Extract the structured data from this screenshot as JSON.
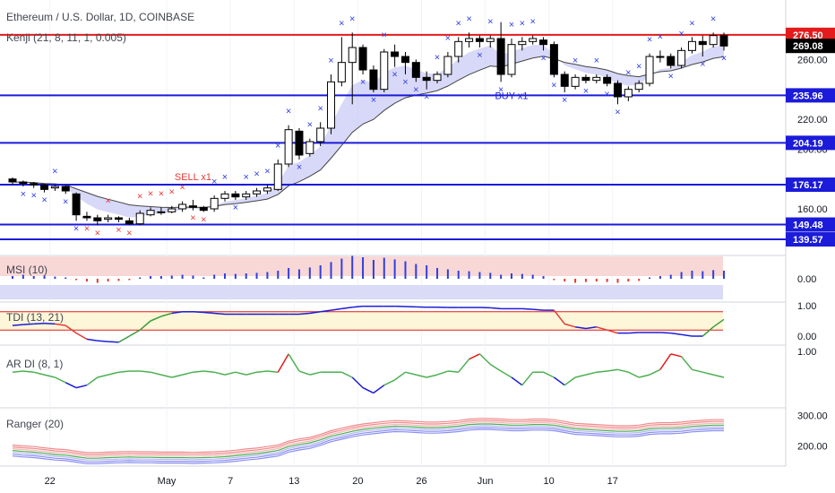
{
  "header": {
    "title": "Ethereum / U.S. Dollar, 1D, COINBASE",
    "indicator": "Kenji (21, 8, 11, 1, 0.005)"
  },
  "colors": {
    "bg": "#ffffff",
    "grid": "#f0f3fa",
    "axis": "#d1d4dc",
    "text": "#131722",
    "level": "#1b1bd9",
    "resistance": "#e31b1b",
    "cloud": "#c7c8f5",
    "cloud_green": "#c9e8c6",
    "marker": "#2f3fe0",
    "marker_sell": "#e53935",
    "up": "#ffffff",
    "down": "#000000",
    "ranger_red": "#f08a8a",
    "ranger_blue": "#8a8ff0"
  },
  "chart_data": [
    {
      "type": "candlestick",
      "title": "Ethereum / U.S. Dollar, 1D, COINBASE",
      "x_labels": [
        "22",
        "May",
        "7",
        "13",
        "20",
        "26",
        "Jun",
        "10",
        "17"
      ],
      "y_ticks": [
        160,
        200,
        220,
        260
      ],
      "ylim": [
        130,
        295
      ],
      "candles": [
        [
          180,
          178,
          181,
          176
        ],
        [
          178,
          177,
          179,
          175
        ],
        [
          177,
          176,
          178,
          174
        ],
        [
          176,
          173,
          177,
          171
        ],
        [
          174,
          175,
          176,
          172
        ],
        [
          175,
          172,
          176,
          170
        ],
        [
          170,
          156,
          171,
          152
        ],
        [
          155,
          154,
          158,
          152
        ],
        [
          154,
          152,
          156,
          149
        ],
        [
          153,
          154,
          156,
          151
        ],
        [
          154,
          153,
          155,
          151
        ],
        [
          152,
          150,
          154,
          149
        ],
        [
          150,
          157,
          159,
          149
        ],
        [
          156,
          159,
          161,
          155
        ],
        [
          158,
          158,
          161,
          156
        ],
        [
          158,
          160,
          162,
          157
        ],
        [
          160,
          163,
          165,
          158
        ],
        [
          162,
          161,
          166,
          159
        ],
        [
          161,
          159,
          162,
          158
        ],
        [
          160,
          167,
          169,
          158
        ],
        [
          167,
          170,
          172,
          165
        ],
        [
          170,
          168,
          172,
          166
        ],
        [
          168,
          170,
          172,
          166
        ],
        [
          170,
          172,
          174,
          168
        ],
        [
          172,
          174,
          176,
          170
        ],
        [
          173,
          190,
          193,
          172
        ],
        [
          190,
          213,
          216,
          188
        ],
        [
          212,
          196,
          214,
          193
        ],
        [
          197,
          205,
          207,
          195
        ],
        [
          205,
          214,
          218,
          202
        ],
        [
          214,
          245,
          250,
          210
        ],
        [
          245,
          258,
          275,
          242
        ],
        [
          258,
          268,
          278,
          230
        ],
        [
          268,
          253,
          270,
          250
        ],
        [
          253,
          240,
          256,
          238
        ],
        [
          240,
          265,
          267,
          238
        ],
        [
          265,
          262,
          270,
          255
        ],
        [
          262,
          258,
          265,
          250
        ],
        [
          258,
          248,
          260,
          245
        ],
        [
          248,
          246,
          252,
          240
        ],
        [
          246,
          250,
          252,
          244
        ],
        [
          250,
          262,
          265,
          248
        ],
        [
          262,
          272,
          275,
          258
        ],
        [
          272,
          274,
          278,
          268
        ],
        [
          274,
          272,
          276,
          268
        ],
        [
          272,
          274,
          276,
          268
        ],
        [
          274,
          250,
          285,
          245
        ],
        [
          250,
          270,
          274,
          248
        ],
        [
          270,
          272,
          275,
          266
        ],
        [
          272,
          274,
          276,
          270
        ],
        [
          273,
          270,
          275,
          266
        ],
        [
          270,
          250,
          272,
          248
        ],
        [
          250,
          242,
          252,
          238
        ],
        [
          242,
          248,
          250,
          240
        ],
        [
          248,
          246,
          250,
          244
        ],
        [
          246,
          248,
          250,
          244
        ],
        [
          248,
          244,
          250,
          242
        ],
        [
          244,
          235,
          246,
          230
        ],
        [
          235,
          240,
          242,
          232
        ],
        [
          240,
          244,
          246,
          238
        ],
        [
          244,
          262,
          264,
          242
        ],
        [
          262,
          262,
          266,
          258
        ],
        [
          262,
          256,
          264,
          254
        ],
        [
          256,
          266,
          268,
          254
        ],
        [
          266,
          272,
          275,
          264
        ],
        [
          272,
          270,
          276,
          262
        ],
        [
          270,
          276,
          278,
          268
        ],
        [
          276,
          269,
          278,
          266
        ]
      ],
      "levels": [
        {
          "value": 276.5,
          "label": "276.50",
          "kind": "resistance"
        },
        {
          "value": 235.96,
          "label": "235.96",
          "kind": "level"
        },
        {
          "value": 204.19,
          "label": "204.19",
          "kind": "level"
        },
        {
          "value": 176.17,
          "label": "176.17",
          "kind": "level"
        },
        {
          "value": 149.48,
          "label": "149.48",
          "kind": "level"
        },
        {
          "value": 139.57,
          "label": "139.57",
          "kind": "level"
        }
      ],
      "last_price": {
        "value": 269.08,
        "label": "269.08"
      },
      "signals": [
        {
          "text": "SELL x1",
          "index": 17,
          "kind": "sell"
        },
        {
          "text": "BUY x1",
          "index": 47,
          "kind": "buy"
        }
      ]
    },
    {
      "type": "bar",
      "title": "MSI (10)",
      "y_ticks": [
        0.0
      ],
      "y_tick_labels": [
        "0.00"
      ],
      "values": [
        0.1,
        0.15,
        0.1,
        0.12,
        0.08,
        0.05,
        -0.05,
        -0.1,
        -0.15,
        -0.1,
        -0.08,
        -0.05,
        0.05,
        0.1,
        0.1,
        0.12,
        0.15,
        0.12,
        0.05,
        0.15,
        0.2,
        0.18,
        0.2,
        0.22,
        0.25,
        0.3,
        0.4,
        0.35,
        0.42,
        0.5,
        0.62,
        0.75,
        0.85,
        0.8,
        0.7,
        0.78,
        0.72,
        0.65,
        0.55,
        0.5,
        0.4,
        0.35,
        0.3,
        0.28,
        0.25,
        0.22,
        0.15,
        0.2,
        0.18,
        0.15,
        0.1,
        -0.05,
        -0.1,
        -0.15,
        -0.12,
        -0.1,
        -0.12,
        -0.15,
        -0.1,
        -0.08,
        0.05,
        0.1,
        0.15,
        0.25,
        0.3,
        0.28,
        0.32,
        0.3
      ]
    },
    {
      "type": "line",
      "title": "TDI (13, 21)",
      "y_ticks": [
        1.0,
        0.0
      ],
      "y_tick_labels": [
        "1.00",
        "0.00"
      ],
      "values": [
        0.35,
        0.38,
        0.4,
        0.42,
        0.4,
        0.35,
        0.1,
        -0.1,
        -0.15,
        -0.18,
        -0.2,
        0.0,
        0.2,
        0.5,
        0.65,
        0.75,
        0.8,
        0.8,
        0.78,
        0.75,
        0.72,
        0.72,
        0.72,
        0.72,
        0.72,
        0.72,
        0.72,
        0.72,
        0.75,
        0.8,
        0.85,
        0.9,
        0.95,
        0.98,
        0.98,
        0.98,
        0.98,
        0.97,
        0.96,
        0.95,
        0.95,
        0.94,
        0.94,
        0.94,
        0.94,
        0.93,
        0.9,
        0.9,
        0.9,
        0.88,
        0.85,
        0.85,
        0.4,
        0.3,
        0.25,
        0.3,
        0.2,
        0.1,
        0.1,
        0.12,
        0.12,
        0.12,
        0.1,
        0.05,
        0.0,
        0.0,
        0.3,
        0.55
      ]
    },
    {
      "type": "line",
      "title": "AR DI (8, 1)",
      "y_ticks": [
        1.0
      ],
      "y_tick_labels": [
        "1.00"
      ],
      "values": [
        0.6,
        0.62,
        0.6,
        0.55,
        0.5,
        0.4,
        0.3,
        0.35,
        0.5,
        0.55,
        0.6,
        0.62,
        0.62,
        0.6,
        0.55,
        0.5,
        0.55,
        0.6,
        0.62,
        0.6,
        0.55,
        0.6,
        0.55,
        0.6,
        0.62,
        0.6,
        0.95,
        0.62,
        0.55,
        0.6,
        0.6,
        0.6,
        0.5,
        0.3,
        0.2,
        0.35,
        0.45,
        0.6,
        0.55,
        0.5,
        0.55,
        0.62,
        0.6,
        0.85,
        0.95,
        0.75,
        0.62,
        0.5,
        0.35,
        0.6,
        0.6,
        0.5,
        0.35,
        0.5,
        0.55,
        0.6,
        0.62,
        0.65,
        0.6,
        0.5,
        0.55,
        0.65,
        0.95,
        0.9,
        0.65,
        0.6,
        0.55,
        0.5
      ]
    },
    {
      "type": "line",
      "title": "Ranger (20)",
      "y_ticks": [
        300,
        200
      ],
      "y_tick_labels": [
        "300.00",
        "200.00"
      ],
      "values": [
        185,
        182,
        180,
        176,
        172,
        170,
        165,
        160,
        160,
        162,
        163,
        164,
        163,
        163,
        162,
        162,
        162,
        161,
        162,
        163,
        165,
        168,
        172,
        175,
        180,
        185,
        198,
        205,
        210,
        220,
        232,
        240,
        248,
        254,
        258,
        262,
        265,
        264,
        262,
        260,
        260,
        262,
        265,
        270,
        272,
        272,
        270,
        268,
        268,
        270,
        270,
        268,
        262,
        256,
        254,
        252,
        250,
        248,
        248,
        250,
        256,
        258,
        258,
        260,
        264,
        266,
        268,
        268
      ]
    }
  ]
}
